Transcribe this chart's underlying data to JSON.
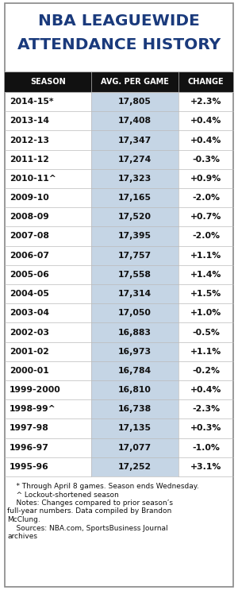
{
  "title_line1": "NBA LEAGUEWIDE",
  "title_line2": "ATTENDANCE HISTORY",
  "header": [
    "SEASON",
    "AVG. PER GAME",
    "CHANGE"
  ],
  "rows": [
    [
      "2014-15*",
      "17,805",
      "+2.3%"
    ],
    [
      "2013-14",
      "17,408",
      "+0.4%"
    ],
    [
      "2012-13",
      "17,347",
      "+0.4%"
    ],
    [
      "2011-12",
      "17,274",
      "-0.3%"
    ],
    [
      "2010-11^",
      "17,323",
      "+0.9%"
    ],
    [
      "2009-10",
      "17,165",
      "-2.0%"
    ],
    [
      "2008-09",
      "17,520",
      "+0.7%"
    ],
    [
      "2007-08",
      "17,395",
      "-2.0%"
    ],
    [
      "2006-07",
      "17,757",
      "+1.1%"
    ],
    [
      "2005-06",
      "17,558",
      "+1.4%"
    ],
    [
      "2004-05",
      "17,314",
      "+1.5%"
    ],
    [
      "2003-04",
      "17,050",
      "+1.0%"
    ],
    [
      "2002-03",
      "16,883",
      "-0.5%"
    ],
    [
      "2001-02",
      "16,973",
      "+1.1%"
    ],
    [
      "2000-01",
      "16,784",
      "-0.2%"
    ],
    [
      "1999-2000",
      "16,810",
      "+0.4%"
    ],
    [
      "1998-99^",
      "16,738",
      "-2.3%"
    ],
    [
      "1997-98",
      "17,135",
      "+0.3%"
    ],
    [
      "1996-97",
      "17,077",
      "-1.0%"
    ],
    [
      "1995-96",
      "17,252",
      "+3.1%"
    ]
  ],
  "footnote_lines": [
    "    * Through April 8 games. Season ends Wednesday.",
    "    ^ Lockout-shortened season",
    "    Notes: Changes compared to prior season’s",
    "full-year numbers. Data compiled by Brandon",
    "McClung.",
    "    Sources: NBA.com, SportsBusiness Journal",
    "archives"
  ],
  "title_color": "#1a3a7c",
  "header_bg": "#111111",
  "header_text_color": "#ffffff",
  "col2_bg": "#c5d5e5",
  "border_color": "#bbbbbb",
  "outer_border_color": "#888888",
  "text_color": "#111111",
  "figsize": [
    3.0,
    7.43
  ],
  "dpi": 100
}
